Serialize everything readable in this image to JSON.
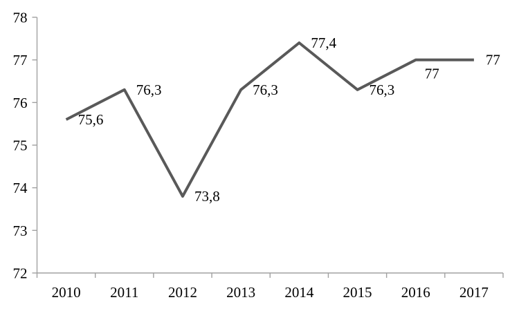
{
  "chart_data": {
    "type": "line",
    "title": "",
    "xlabel": "",
    "ylabel": "",
    "categories": [
      "2010",
      "2011",
      "2012",
      "2013",
      "2014",
      "2015",
      "2016",
      "2017"
    ],
    "series": [
      {
        "name": "series-1",
        "values": [
          75.6,
          76.3,
          73.8,
          76.3,
          77.4,
          76.3,
          77,
          77
        ],
        "point_labels": [
          "75,6",
          "76,3",
          "73,8",
          "76,3",
          "77,4",
          "76,3",
          "77",
          "77"
        ],
        "label_positions": [
          "right",
          "right",
          "right",
          "right",
          "right",
          "right",
          "below-right",
          "right"
        ]
      }
    ],
    "ylim": [
      72,
      78
    ],
    "ytick_step": 1,
    "ytick_labels": [
      "72",
      "73",
      "74",
      "75",
      "76",
      "77",
      "78"
    ],
    "grid": false,
    "legend_position": "none",
    "markers": false,
    "line_color": "#595959",
    "axis_color": "#a0a0a0",
    "text_color": "#000000"
  }
}
